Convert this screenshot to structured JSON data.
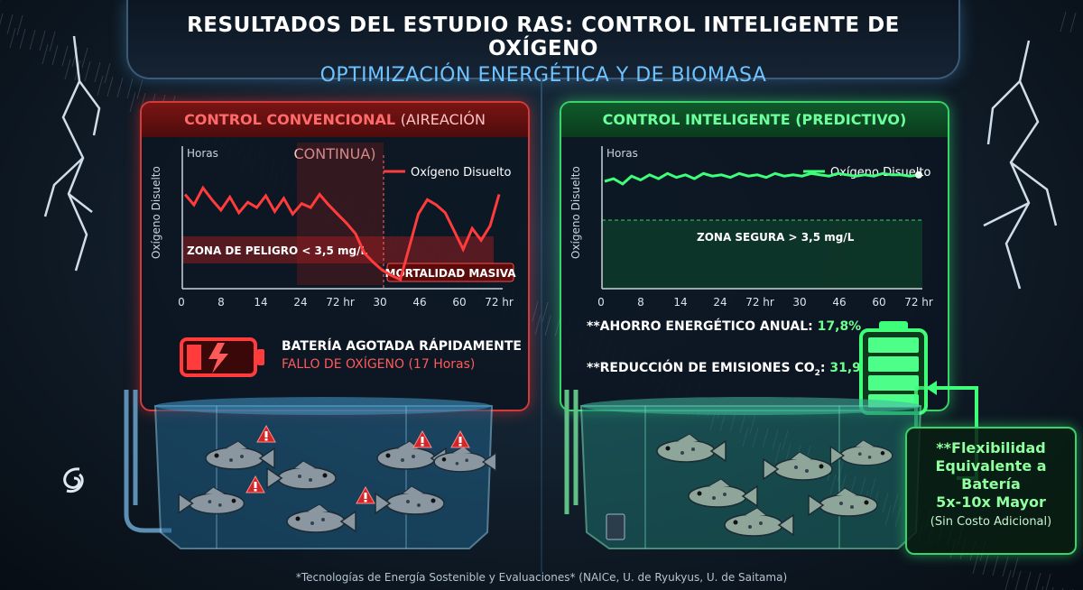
{
  "header": {
    "title": "RESULTADOS DEL ESTUDIO RAS: CONTROL INTELIGENTE DE OXÍGENO",
    "subtitle": "OPTIMIZACIÓN ENERGÉTICA Y DE BIOMASA"
  },
  "left": {
    "title": "CONTROL CONVENCIONAL",
    "title_sub": "(AIREACIÓN CONTINUA)",
    "battery_title": "BATERÍA AGOTADA RÁPIDAMENTE",
    "battery_sub": "FALLO DE OXÍGENO (17 Horas)"
  },
  "right": {
    "title": "CONTROL INTELIGENTE (PREDICTIVO)",
    "saving_label": "**AHORRO ENERGÉTICO ANUAL:",
    "saving_value": "17,8%",
    "emission_label": "**REDUCCIÓN DE EMISIONES CO",
    "emission_sub": "2",
    "emission_colon": ":",
    "emission_value": "31,9%"
  },
  "flex": {
    "line1": "**Flexibilidad",
    "line2": "Equivalente a",
    "line3": "Batería",
    "line4": "5x-10x Mayor",
    "sub": "(Sin Costo Adicional)"
  },
  "footer": "*Tecnologías de Energía Sostenible y Evaluaciones* (NAICe, U. de Ryukyus, U. de Saitama)",
  "colors": {
    "red": "#ff3b3b",
    "green": "#3dff7a",
    "blue": "#6ec3ff"
  },
  "icons": {
    "left_battery": "battery-empty-lightning-icon",
    "right_battery": "battery-full-icon",
    "warning": "warning-triangle-icon",
    "logo": "swirl-logo-icon"
  },
  "chart_data": [
    {
      "type": "line",
      "xlabel": "Horas",
      "ylabel": "Oxígeno Disuelto",
      "legend": "Oxígeno Disuelto",
      "legend_position": "top-right",
      "x_ticks": [
        "0",
        "8",
        "14",
        "24",
        "72 hr",
        "30",
        "46",
        "60",
        "72 hr"
      ],
      "zone_label": "ZONA DE PELIGRO < 3,5 mg/L",
      "annotation": "MORTALIDAD MASIVA",
      "color": "#ff3b3b",
      "y": [
        0.7,
        0.62,
        0.75,
        0.66,
        0.58,
        0.68,
        0.56,
        0.64,
        0.6,
        0.69,
        0.57,
        0.67,
        0.55,
        0.63,
        0.6,
        0.7,
        0.62,
        0.55,
        0.48,
        0.4,
        0.25,
        0.18,
        0.12,
        0.08,
        0.05,
        0.3,
        0.55,
        0.66,
        0.62,
        0.56,
        0.42,
        0.28,
        0.44,
        0.35,
        0.46,
        0.7
      ]
    },
    {
      "type": "line",
      "xlabel": "Horas",
      "ylabel": "Oxígeno Disuelto",
      "legend": "Oxígeno Disuelto",
      "legend_position": "top-right",
      "x_ticks": [
        "0",
        "8",
        "14",
        "24",
        "72 hr",
        "30",
        "46",
        "60",
        "72 hr"
      ],
      "zone_label": "ZONA SEGURA > 3,5 mg/L",
      "color": "#3dff7a",
      "y": [
        0.8,
        0.82,
        0.78,
        0.84,
        0.81,
        0.85,
        0.82,
        0.86,
        0.83,
        0.85,
        0.82,
        0.86,
        0.84,
        0.85,
        0.83,
        0.86,
        0.84,
        0.85,
        0.83,
        0.86,
        0.84,
        0.85,
        0.84,
        0.86,
        0.85,
        0.84,
        0.86,
        0.85,
        0.84,
        0.85,
        0.84,
        0.86,
        0.85,
        0.85,
        0.84,
        0.85
      ]
    }
  ]
}
